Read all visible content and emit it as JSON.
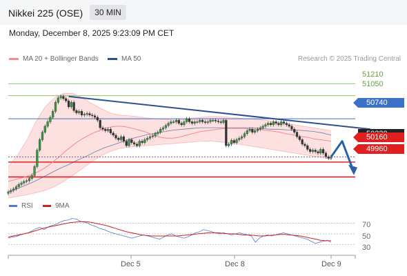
{
  "header": {
    "title": "Nikkei 225 (OSE)",
    "timeframe": "30 MIN"
  },
  "timestamp": "Monday, December 8, 2025 9:23:09 PM CET",
  "legend": {
    "ma20_label": "MA 20 + Bollinger Bands",
    "ma50_label": "MA 50"
  },
  "copyright": "Research © 2025 Trading Central",
  "colors": {
    "ma20": "#f08c8c",
    "ma50": "#2c4f8f",
    "resistance": "#8dc46b",
    "pivot": "#3b72c8",
    "support": "#e02020",
    "bands": "#fde0e0",
    "rsi": "#5577d0",
    "rsi_ma": "#d22020"
  },
  "chart_data": {
    "type": "candlestick",
    "x_ticks": [
      "Dec 5",
      "Dec 8",
      "Dec 9"
    ],
    "ylim": [
      49650,
      51500
    ],
    "price_levels": [
      {
        "value": 51210,
        "label": "51210",
        "kind": "resistance"
      },
      {
        "value": 51050,
        "label": "51050",
        "kind": "resistance"
      },
      {
        "value": 50740,
        "label": "50740",
        "kind": "pivot"
      },
      {
        "value": 50160,
        "label": "50160",
        "kind": "support"
      },
      {
        "value": 49960,
        "label": "49960",
        "kind": "support"
      }
    ],
    "last_price_label": "50230",
    "closes": [
      49760,
      49780,
      49800,
      49830,
      49860,
      49880,
      49900,
      49910,
      49940,
      49980,
      50100,
      50320,
      50460,
      50560,
      50640,
      50700,
      50760,
      50840,
      50960,
      51020,
      51040,
      51010,
      50980,
      50900,
      50960,
      50850,
      50820,
      50840,
      50790,
      50800,
      50810,
      50790,
      50780,
      50760,
      50720,
      50620,
      50600,
      50580,
      50600,
      50550,
      50520,
      50480,
      50460,
      50500,
      50440,
      50380,
      50460,
      50420,
      50400,
      50380,
      50440,
      50420,
      50460,
      50480,
      50500,
      50510,
      50540,
      50560,
      50600,
      50620,
      50650,
      50680,
      50700,
      50700,
      50720,
      50680,
      50660,
      50700,
      50740,
      50700,
      50680,
      50700,
      50700,
      50720,
      50700,
      50690,
      50700,
      50720,
      50720,
      50710,
      50700,
      50690,
      50720,
      50380,
      50400,
      50450,
      50420,
      50460,
      50480,
      50500,
      50540,
      50580,
      50600,
      50560,
      50580,
      50600,
      50620,
      50640,
      50660,
      50680,
      50660,
      50700,
      50680,
      50660,
      50700,
      50680,
      50660,
      50640,
      50600,
      50560,
      50500,
      50460,
      50400,
      50380,
      50330,
      50300,
      50320,
      50300,
      50280,
      50330,
      50280,
      50230,
      50210,
      50230
    ],
    "ma20": [
      49900,
      49920,
      49940,
      49960,
      49990,
      50020,
      50060,
      50110,
      50170,
      50230,
      50300,
      50360,
      50420,
      50470,
      50510,
      50550,
      50580,
      50610,
      50630,
      50640,
      50640,
      50630,
      50610,
      50590,
      50570,
      50540,
      50510,
      50490,
      50480,
      50480,
      50490,
      50510,
      50530,
      50550,
      50570,
      50580,
      50590,
      50600,
      50610,
      50610,
      50610,
      50610,
      50610,
      50600,
      50600,
      50590,
      50580,
      50570,
      50560,
      50540,
      50530,
      50510,
      50500,
      50490,
      50470,
      50460,
      50450,
      50440
    ],
    "ma50": [
      49760,
      49800,
      49850,
      49900,
      49960,
      50020,
      50080,
      50130,
      50190,
      50240,
      50300,
      50350,
      50390,
      50430,
      50470,
      50500,
      50530,
      50550,
      50570,
      50590,
      50600,
      50610,
      50620,
      50620,
      50620,
      50620,
      50620,
      50620,
      50620,
      50610,
      50600,
      50600,
      50590,
      50590,
      50580,
      50570,
      50550,
      50520
    ],
    "band_upper": [
      50100,
      50250,
      50450,
      50700,
      50900,
      51020,
      51080,
      51080,
      51020,
      50950,
      50880,
      50820,
      50790,
      50780,
      50770,
      50750,
      50740,
      50730,
      50720,
      50730,
      50750,
      50760,
      50770,
      50770,
      50760,
      50750,
      50740,
      50730,
      50720,
      50700,
      50680,
      50660,
      50640,
      50620,
      50600,
      50580
    ],
    "band_lower": [
      49680,
      49700,
      49720,
      49750,
      49780,
      49830,
      49900,
      49980,
      50070,
      50160,
      50240,
      50300,
      50340,
      50360,
      50370,
      50380,
      50390,
      50400,
      50410,
      50420,
      50430,
      50440,
      50440,
      50430,
      50420,
      50400,
      50380,
      50360,
      50340,
      50320,
      50300,
      50280,
      50260,
      50240,
      50220,
      50200
    ],
    "trendline": {
      "from": {
        "index": 23,
        "value": 51040
      },
      "to": {
        "index": 138,
        "value": 50600
      }
    },
    "forecast": [
      50230,
      50440,
      50050
    ],
    "rsi": {
      "legend": [
        "RSI",
        "9MA"
      ],
      "y_ticks": [
        "70",
        "50",
        "30"
      ],
      "ylim": [
        20,
        85
      ],
      "rsi_values": [
        42,
        44,
        45,
        48,
        50,
        52,
        56,
        60,
        62,
        58,
        63,
        66,
        68,
        72,
        75,
        76,
        79,
        78,
        74,
        72,
        70,
        66,
        64,
        60,
        58,
        55,
        52,
        50,
        48,
        46,
        44,
        42,
        44,
        46,
        48,
        46,
        44,
        42,
        40,
        44,
        48,
        50,
        46,
        44,
        42,
        44,
        48,
        52,
        54,
        58,
        56,
        54,
        52,
        50,
        52,
        50,
        48,
        50,
        52,
        50,
        48,
        46,
        34,
        42,
        46,
        48,
        46,
        48,
        50,
        52,
        50,
        48,
        46,
        44,
        42,
        40,
        36,
        32,
        34,
        36,
        38,
        34
      ],
      "ma_values": [
        44,
        46,
        48,
        50,
        52,
        55,
        58,
        61,
        63,
        65,
        67,
        69,
        71,
        72,
        73,
        73,
        72,
        70,
        68,
        66,
        63,
        60,
        57,
        54,
        52,
        50,
        48,
        47,
        46,
        46,
        46,
        46,
        46,
        46,
        47,
        48,
        49,
        50,
        51,
        52,
        52,
        52,
        51,
        50,
        50,
        49,
        48,
        48,
        47,
        46,
        46,
        47,
        48,
        49,
        49,
        48,
        47,
        46,
        44,
        42,
        40,
        38,
        37,
        37
      ]
    }
  }
}
